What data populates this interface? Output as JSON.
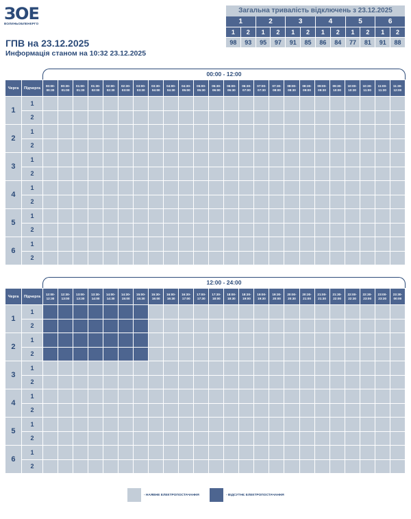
{
  "logo": {
    "glyph": "ЗОЕ",
    "brand": "ВОЛИНЬОБЛЕНЕРГО"
  },
  "title": "ГПВ на 23.12.2025",
  "subtitle": "Информація станом на 10:32 23.12.2025",
  "summary": {
    "heading": "Загальна тривалість відключень з 23.12.2025",
    "queues": [
      "1",
      "2",
      "3",
      "4",
      "5",
      "6"
    ],
    "subqueues": [
      "1",
      "2",
      "1",
      "2",
      "1",
      "2",
      "1",
      "2",
      "1",
      "2",
      "1",
      "2"
    ],
    "values": [
      "98",
      "93",
      "95",
      "97",
      "91",
      "85",
      "86",
      "84",
      "77",
      "81",
      "91",
      "88"
    ]
  },
  "headers": {
    "queue": "Черга",
    "subqueue": "Підчерга"
  },
  "periods": [
    {
      "label": "00:00 - 12:00",
      "slots": [
        "00:00-00:30",
        "00:30-01:00",
        "01:00-01:30",
        "01:30-02:00",
        "02:00-02:30",
        "02:30-03:00",
        "03:00-03:30",
        "03:30-04:00",
        "04:00-04:30",
        "04:30-05:00",
        "05:00-05:30",
        "05:30-06:00",
        "06:00-06:30",
        "06:30-07:00",
        "07:00-07:30",
        "07:30-08:00",
        "08:00-08:30",
        "08:30-09:00",
        "09:00-09:30",
        "09:30-10:00",
        "10:00-10:30",
        "10:30-11:00",
        "11:00-11:30",
        "11:30-12:00"
      ],
      "outages": {
        "1.1": [],
        "1.2": [],
        "2.1": [],
        "2.2": [],
        "3.1": [],
        "3.2": [],
        "4.1": [],
        "4.2": [],
        "5.1": [],
        "5.2": [],
        "6.1": [],
        "6.2": []
      }
    },
    {
      "label": "12:00 - 24:00",
      "slots": [
        "12:00-12:30",
        "12:30-13:00",
        "13:00-13:30",
        "13:30-14:00",
        "14:00-14:30",
        "14:30-15:00",
        "15:00-15:30",
        "15:30-16:00",
        "16:00-16:30",
        "16:30-17:00",
        "17:00-17:30",
        "17:30-18:00",
        "18:00-18:30",
        "18:30-19:00",
        "19:00-19:30",
        "19:30-20:00",
        "20:00-20:30",
        "20:30-21:00",
        "21:00-21:30",
        "21:30-22:00",
        "22:00-22:30",
        "22:30-23:00",
        "23:00-23:30",
        "23:30-00:00"
      ],
      "outages": {
        "1.1": [
          0,
          1,
          2,
          3,
          4,
          5,
          6
        ],
        "1.2": [
          0,
          1,
          2,
          3,
          4,
          5,
          6
        ],
        "2.1": [
          0,
          1,
          2,
          3,
          4,
          5,
          6
        ],
        "2.2": [
          0,
          1,
          2,
          3,
          4,
          5,
          6
        ],
        "3.1": [],
        "3.2": [],
        "4.1": [],
        "4.2": [],
        "5.1": [],
        "5.2": [],
        "6.1": [],
        "6.2": []
      }
    }
  ],
  "queues": [
    "1",
    "2",
    "3",
    "4",
    "5",
    "6"
  ],
  "subqueue_labels": [
    "1",
    "2"
  ],
  "legend": {
    "available_label": "- НАЯВНЕ ЕЛЕКТРОПОСТАЧАННЯ",
    "missing_label": "- ВІДСУТНЄ ЕЛЕКТРОПОСТАЧАННЯ",
    "available_color": "#c3cdd8",
    "missing_color": "#4d6590"
  }
}
